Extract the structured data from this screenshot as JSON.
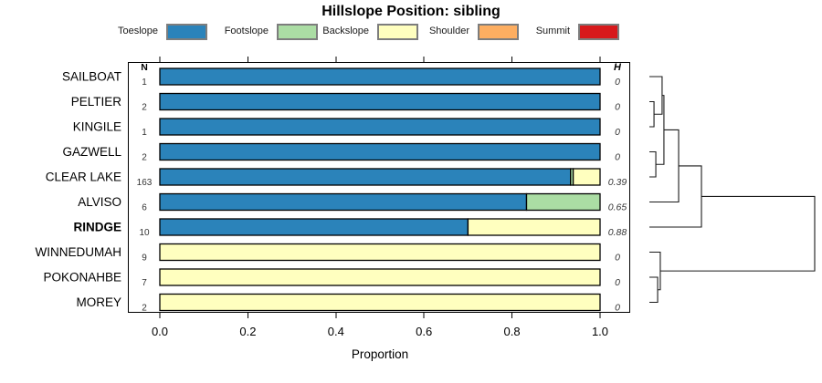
{
  "figure_title": "Hillslope Position: sibling",
  "columns": {
    "n_header": "N",
    "h_header": "H"
  },
  "chart_data": {
    "type": "bar",
    "stacked": true,
    "orientation": "horizontal",
    "title": "Hillslope Position: sibling",
    "xlabel": "Proportion",
    "xlim": [
      0,
      1
    ],
    "xticks": [
      0.0,
      0.2,
      0.4,
      0.6,
      0.8,
      1.0
    ],
    "xtick_labels": [
      "0.0",
      "0.2",
      "0.4",
      "0.6",
      "0.8",
      "1.0"
    ],
    "grid": false,
    "legend_position": "top",
    "classes": [
      {
        "name": "Toeslope",
        "color": "#2b83ba"
      },
      {
        "name": "Footslope",
        "color": "#abdda4"
      },
      {
        "name": "Backslope",
        "color": "#ffffbf"
      },
      {
        "name": "Shoulder",
        "color": "#fdae61"
      },
      {
        "name": "Summit",
        "color": "#d7191c"
      }
    ],
    "rows": [
      {
        "name": "SAILBOAT",
        "n": "1",
        "h": "0",
        "bold": false,
        "proportions": [
          1,
          0,
          0,
          0,
          0
        ]
      },
      {
        "name": "PELTIER",
        "n": "2",
        "h": "0",
        "bold": false,
        "proportions": [
          1,
          0,
          0,
          0,
          0
        ]
      },
      {
        "name": "KINGILE",
        "n": "1",
        "h": "0",
        "bold": false,
        "proportions": [
          1,
          0,
          0,
          0,
          0
        ]
      },
      {
        "name": "GAZWELL",
        "n": "2",
        "h": "0",
        "bold": false,
        "proportions": [
          1,
          0,
          0,
          0,
          0
        ]
      },
      {
        "name": "CLEAR LAKE",
        "n": "163",
        "h": "0.39",
        "bold": false,
        "proportions": [
          0.933,
          0.006,
          0.061,
          0,
          0
        ]
      },
      {
        "name": "ALVISO",
        "n": "6",
        "h": "0.65",
        "bold": false,
        "proportions": [
          0.833,
          0.167,
          0,
          0,
          0
        ]
      },
      {
        "name": "RINDGE",
        "n": "10",
        "h": "0.88",
        "bold": true,
        "proportions": [
          0.7,
          0,
          0.3,
          0,
          0
        ]
      },
      {
        "name": "WINNEDUMAH",
        "n": "9",
        "h": "0",
        "bold": false,
        "proportions": [
          0,
          0,
          1,
          0,
          0
        ]
      },
      {
        "name": "POKONAHBE",
        "n": "7",
        "h": "0",
        "bold": false,
        "proportions": [
          0,
          0,
          1,
          0,
          0
        ]
      },
      {
        "name": "MOREY",
        "n": "2",
        "h": "0",
        "bold": false,
        "proportions": [
          0,
          0,
          1,
          0,
          0
        ]
      }
    ],
    "dendrogram": {
      "leaf_order": [
        "SAILBOAT",
        "PELTIER",
        "KINGILE",
        "GAZWELL",
        "CLEAR LAKE",
        "ALVISO",
        "RINDGE",
        "WINNEDUMAH",
        "POKONAHBE",
        "MOREY"
      ],
      "merges": [
        {
          "id": "m1",
          "children": [
            "PELTIER",
            "KINGILE"
          ],
          "height": 0.028
        },
        {
          "id": "m2",
          "children": [
            "GAZWELL",
            "CLEAR LAKE"
          ],
          "height": 0.039
        },
        {
          "id": "m3",
          "children": [
            "SAILBOAT",
            "m1"
          ],
          "height": 0.077
        },
        {
          "id": "m4",
          "children": [
            "m3",
            "m2"
          ],
          "height": 0.088
        },
        {
          "id": "m5",
          "children": [
            "m4",
            "ALVISO"
          ],
          "height": 0.177
        },
        {
          "id": "m6",
          "children": [
            "m5",
            "RINDGE"
          ],
          "height": 0.315
        },
        {
          "id": "m7",
          "children": [
            "POKONAHBE",
            "MOREY"
          ],
          "height": 0.05
        },
        {
          "id": "m8",
          "children": [
            "WINNEDUMAH",
            "m7"
          ],
          "height": 0.066
        },
        {
          "id": "m9",
          "children": [
            "m6",
            "m8"
          ],
          "height": 1.0
        }
      ]
    }
  }
}
